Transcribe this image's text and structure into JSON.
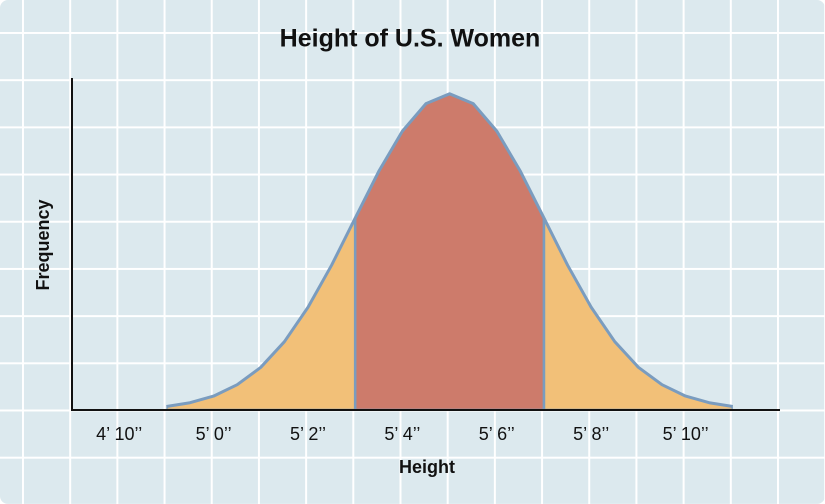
{
  "chart_data": {
    "type": "area",
    "title": "Height of U.S. Women",
    "x_label": "Height",
    "y_label": "Frequency",
    "x": [
      59,
      59.5,
      60,
      60.5,
      61,
      61.5,
      62,
      62.5,
      63,
      63.5,
      64,
      64.5,
      65,
      65.5,
      66,
      66.5,
      67,
      67.5,
      68,
      68.5,
      69,
      69.5,
      70,
      70.5,
      71
    ],
    "values": [
      0.011,
      0.023,
      0.044,
      0.08,
      0.135,
      0.216,
      0.325,
      0.458,
      0.607,
      0.755,
      0.882,
      0.969,
      1,
      0.969,
      0.882,
      0.755,
      0.607,
      0.458,
      0.325,
      0.216,
      0.135,
      0.08,
      0.044,
      0.023,
      0.011
    ],
    "color": "#7a9cbf",
    "bands": [
      {
        "from": 59,
        "to": 63,
        "color": "#f2c078"
      },
      {
        "from": 63,
        "to": 67,
        "color": "#cd7b6b"
      },
      {
        "from": 67,
        "to": 71,
        "color": "#f2c078"
      }
    ],
    "xlim": [
      57,
      72
    ],
    "ylim": [
      0,
      1.05
    ],
    "xticks": [
      {
        "value": 58,
        "label": "4’ 10’’"
      },
      {
        "value": 60,
        "label": "5’ 0’’"
      },
      {
        "value": 62,
        "label": "5’ 2’’"
      },
      {
        "value": 64,
        "label": "5’ 4’’"
      },
      {
        "value": 66,
        "label": "5’ 6’’"
      },
      {
        "value": 68,
        "label": "5’ 8’’"
      },
      {
        "value": 70,
        "label": "5’ 10’’"
      }
    ]
  }
}
